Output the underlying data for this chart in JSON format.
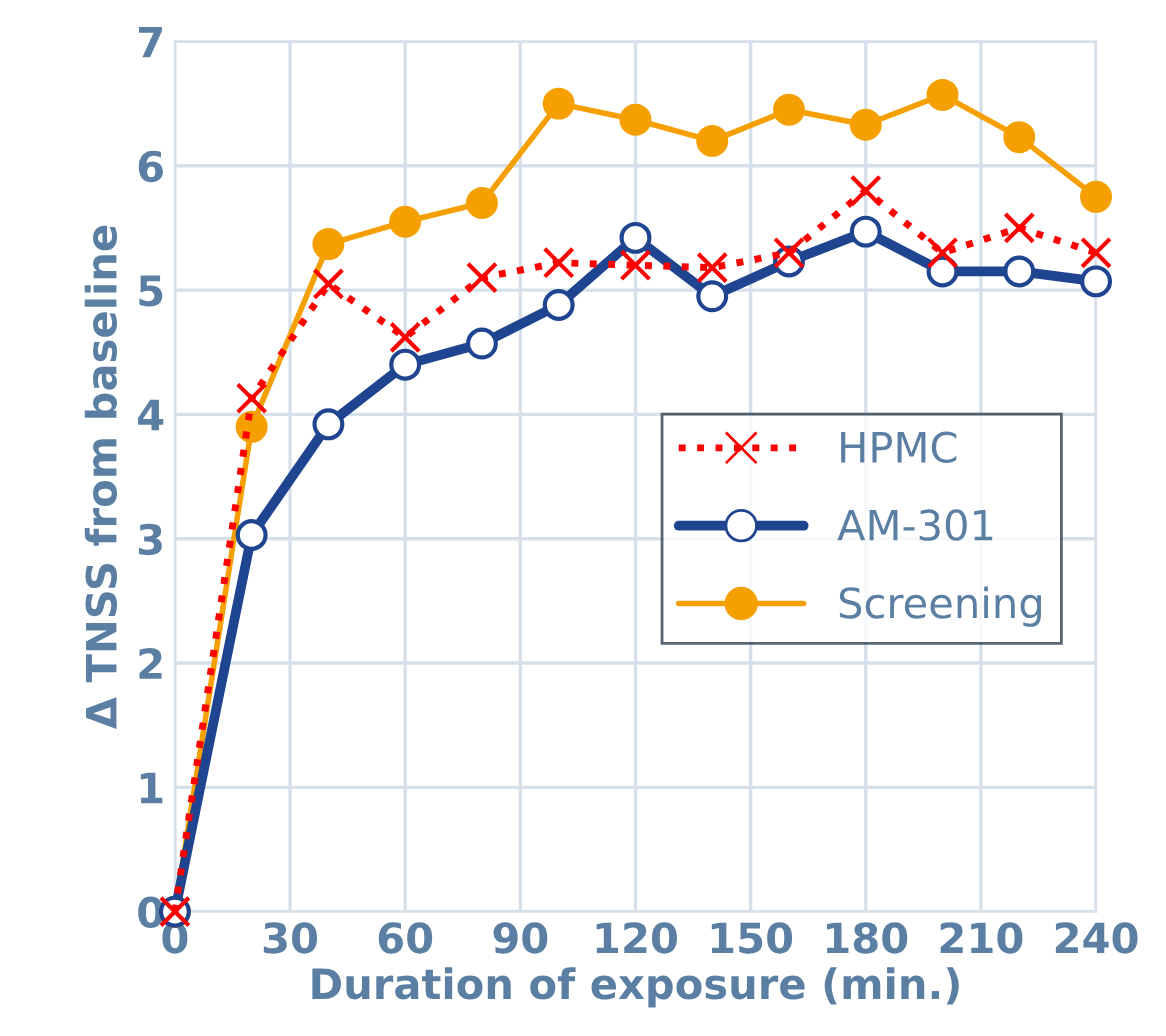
{
  "chart_data": {
    "type": "line",
    "xlabel": "Duration of exposure (min.)",
    "ylabel": "Δ TNSS from baseline",
    "x": [
      0,
      20,
      40,
      60,
      80,
      100,
      120,
      140,
      160,
      180,
      200,
      220,
      240
    ],
    "series": [
      {
        "name": "HPMC",
        "color": "#ff0000",
        "marker": "cross",
        "line_style": "dotted",
        "values": [
          0,
          4.13,
          5.05,
          4.62,
          5.1,
          5.22,
          5.2,
          5.18,
          5.3,
          5.8,
          5.3,
          5.5,
          5.3
        ]
      },
      {
        "name": "AM-301",
        "color": "#1f4591",
        "marker": "circle",
        "line_style": "solid",
        "values": [
          0,
          3.03,
          3.92,
          4.4,
          4.57,
          4.88,
          5.42,
          4.95,
          5.23,
          5.47,
          5.15,
          5.15,
          5.07
        ]
      },
      {
        "name": "Screening",
        "color": "#f5a000",
        "marker": "circle",
        "line_style": "solid",
        "values": [
          0,
          3.9,
          5.37,
          5.55,
          5.7,
          6.5,
          6.37,
          6.2,
          6.45,
          6.33,
          6.57,
          6.23,
          5.75
        ]
      }
    ],
    "xlim": [
      0,
      240
    ],
    "xticks": [
      0,
      30,
      60,
      90,
      120,
      150,
      180,
      210,
      240
    ],
    "ylim": [
      0,
      7
    ],
    "yticks": [
      0,
      1,
      2,
      3,
      4,
      5,
      6,
      7
    ],
    "grid": true,
    "legend": "right"
  }
}
